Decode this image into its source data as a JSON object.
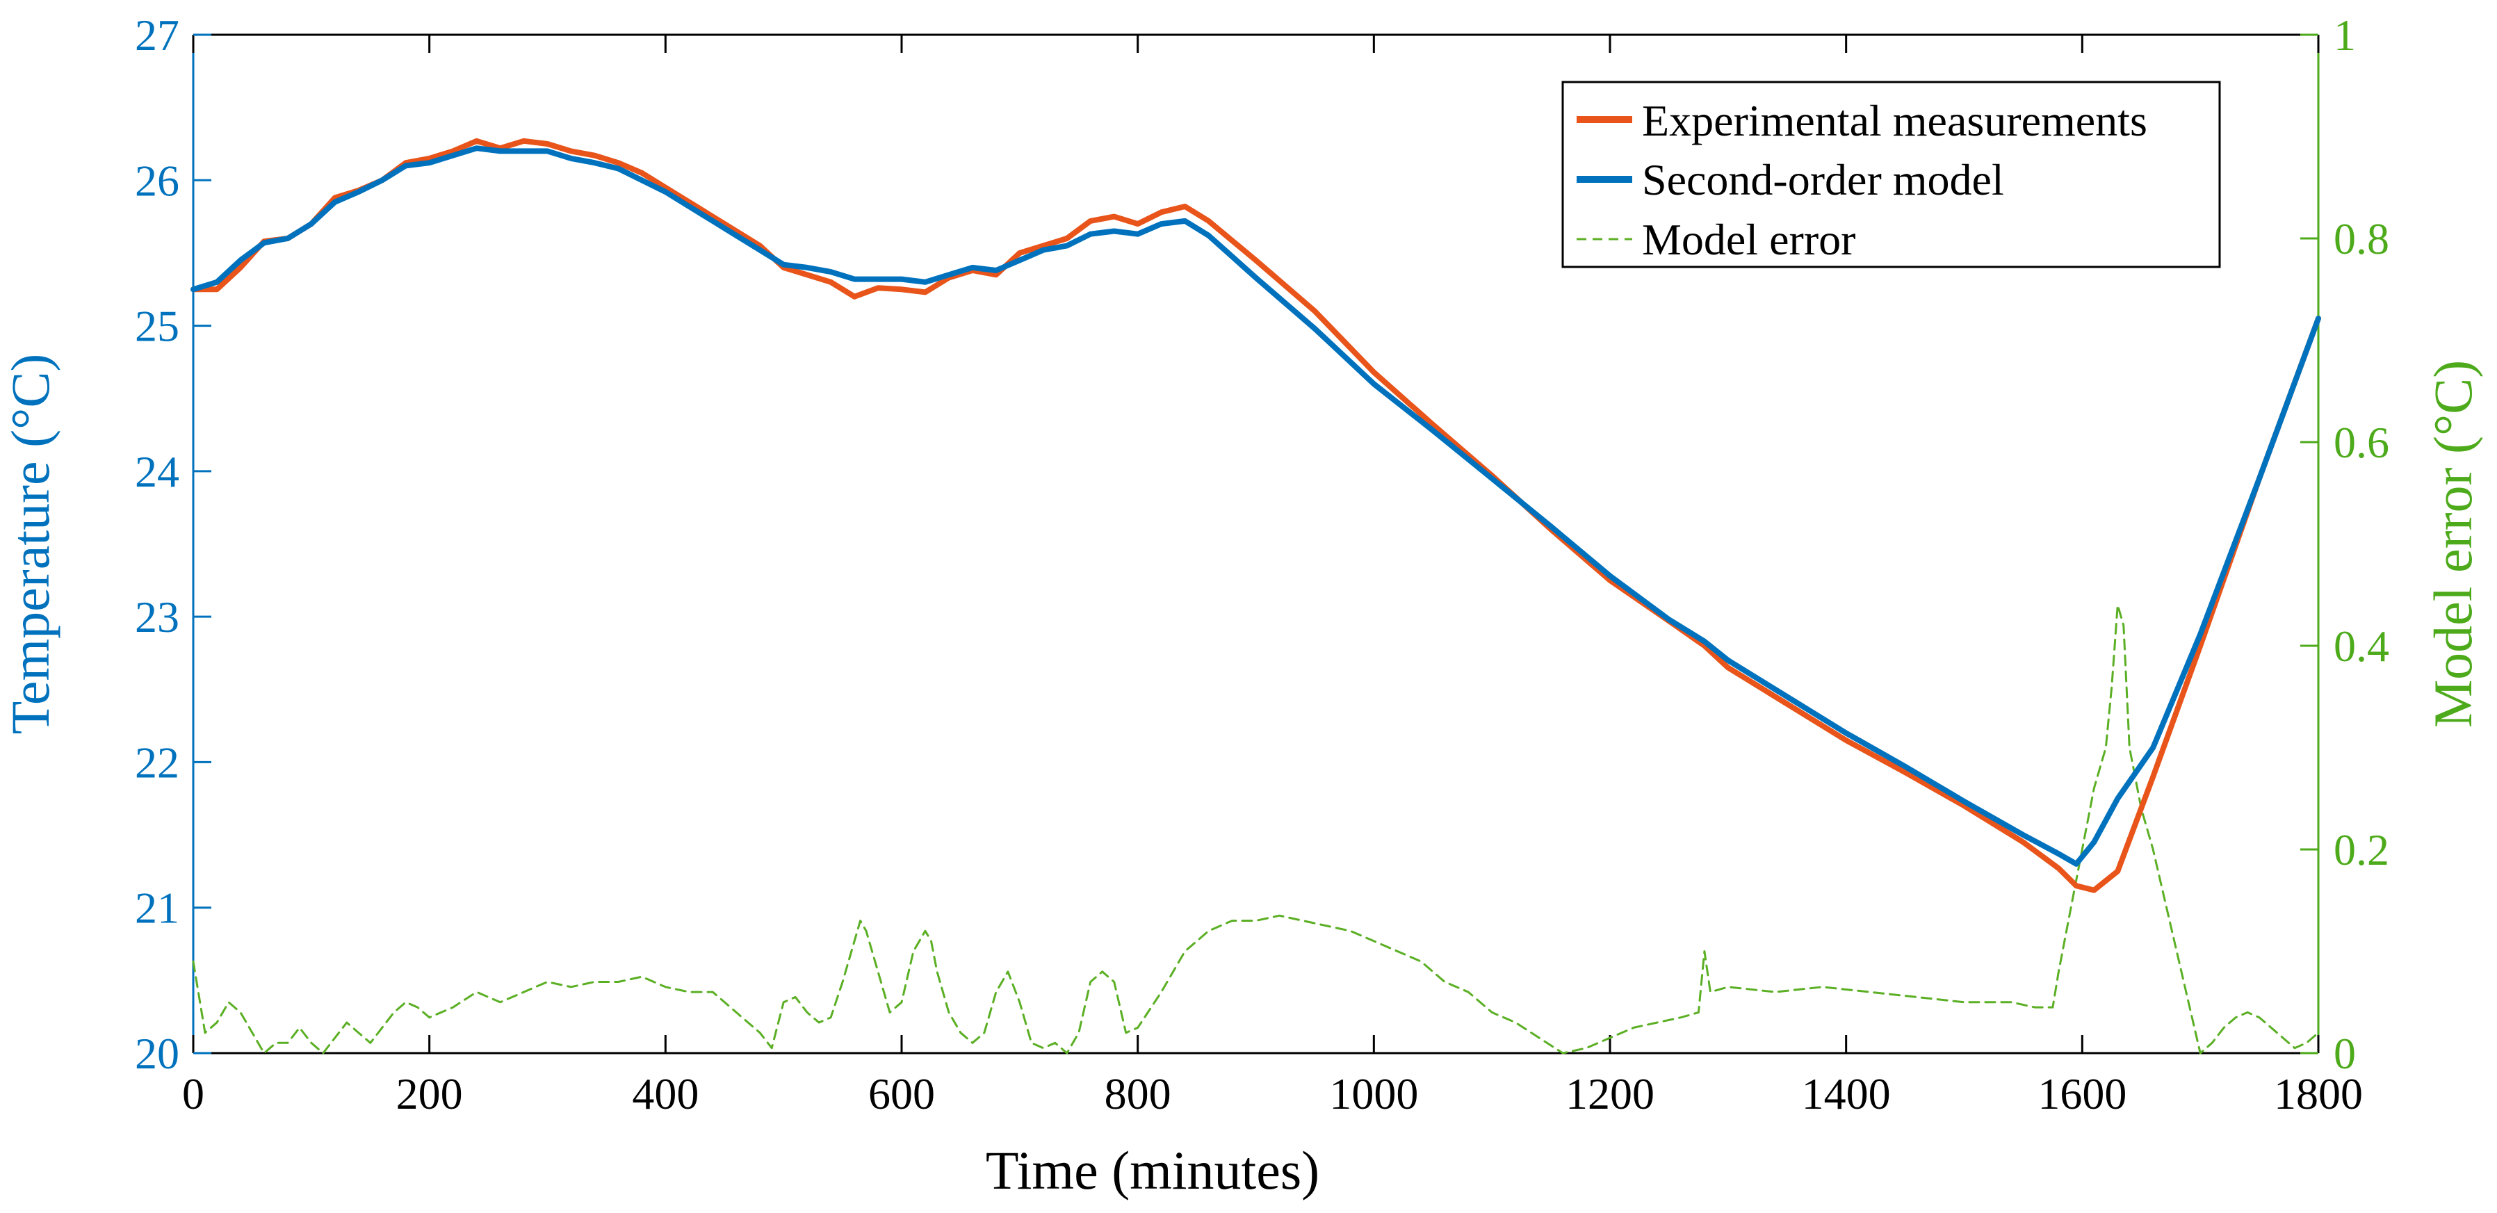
{
  "colors": {
    "left_axis": "#0072BD",
    "right_axis": "#4DAA1A",
    "experimental": "#E8541A",
    "model": "#0072BD",
    "error": "#5BAF24",
    "frame": "#000000"
  },
  "chart_data": {
    "type": "line",
    "title": "",
    "xlabel": "Time (minutes)",
    "ylabel_left": "Temperature (°C)",
    "ylabel_right": "Model error (°C)",
    "xlim": [
      0,
      1800
    ],
    "ylim_left": [
      20,
      27
    ],
    "ylim_right": [
      0,
      1
    ],
    "x_ticks": [
      0,
      200,
      400,
      600,
      800,
      1000,
      1200,
      1400,
      1600,
      1800
    ],
    "y_left_ticks": [
      20,
      21,
      22,
      23,
      24,
      25,
      26,
      27
    ],
    "y_right_ticks": [
      "0",
      "0.2",
      "0.4",
      "0.6",
      "0.8",
      "1"
    ],
    "grid": false,
    "legend_position": "top-right",
    "series": [
      {
        "name": "Experimental measurements",
        "axis": "left",
        "style": "solid",
        "x": [
          0,
          20,
          40,
          60,
          80,
          100,
          120,
          140,
          160,
          180,
          200,
          220,
          240,
          260,
          280,
          300,
          320,
          340,
          360,
          380,
          400,
          420,
          440,
          460,
          480,
          500,
          520,
          540,
          560,
          580,
          600,
          620,
          640,
          660,
          680,
          700,
          720,
          740,
          760,
          780,
          800,
          820,
          840,
          860,
          900,
          950,
          1000,
          1050,
          1100,
          1150,
          1200,
          1250,
          1280,
          1300,
          1350,
          1400,
          1450,
          1500,
          1550,
          1580,
          1595,
          1610,
          1630,
          1660,
          1700,
          1750,
          1800
        ],
        "values": [
          25.25,
          25.25,
          25.4,
          25.58,
          25.6,
          25.7,
          25.88,
          25.93,
          26.0,
          26.12,
          26.15,
          26.2,
          26.27,
          26.22,
          26.27,
          26.25,
          26.2,
          26.17,
          26.12,
          26.05,
          25.95,
          25.85,
          25.75,
          25.65,
          25.55,
          25.4,
          25.35,
          25.3,
          25.2,
          25.26,
          25.25,
          25.23,
          25.33,
          25.38,
          25.35,
          25.5,
          25.55,
          25.6,
          25.72,
          25.75,
          25.7,
          25.78,
          25.82,
          25.72,
          25.45,
          25.1,
          24.68,
          24.32,
          23.97,
          23.6,
          23.25,
          22.97,
          22.8,
          22.65,
          22.4,
          22.15,
          21.93,
          21.7,
          21.45,
          21.27,
          21.15,
          21.12,
          21.25,
          21.9,
          22.8,
          23.95,
          25.05
        ]
      },
      {
        "name": "Second-order model",
        "axis": "left",
        "style": "solid",
        "x": [
          0,
          20,
          40,
          60,
          80,
          100,
          120,
          140,
          160,
          180,
          200,
          220,
          240,
          260,
          280,
          300,
          320,
          340,
          360,
          380,
          400,
          420,
          440,
          460,
          480,
          500,
          520,
          540,
          560,
          580,
          600,
          620,
          640,
          660,
          680,
          700,
          720,
          740,
          760,
          780,
          800,
          820,
          840,
          860,
          900,
          950,
          1000,
          1050,
          1100,
          1150,
          1200,
          1250,
          1280,
          1300,
          1350,
          1400,
          1450,
          1500,
          1550,
          1580,
          1595,
          1610,
          1630,
          1660,
          1700,
          1750,
          1800
        ],
        "values": [
          25.25,
          25.3,
          25.45,
          25.57,
          25.6,
          25.7,
          25.85,
          25.92,
          26.0,
          26.1,
          26.12,
          26.17,
          26.22,
          26.2,
          26.2,
          26.2,
          26.15,
          26.12,
          26.08,
          26.0,
          25.92,
          25.82,
          25.72,
          25.62,
          25.52,
          25.42,
          25.4,
          25.37,
          25.32,
          25.32,
          25.32,
          25.3,
          25.35,
          25.4,
          25.38,
          25.45,
          25.52,
          25.55,
          25.63,
          25.65,
          25.63,
          25.7,
          25.72,
          25.62,
          25.33,
          24.98,
          24.6,
          24.28,
          23.95,
          23.62,
          23.28,
          22.98,
          22.83,
          22.7,
          22.45,
          22.2,
          21.97,
          21.73,
          21.5,
          21.37,
          21.3,
          21.45,
          21.75,
          22.1,
          22.88,
          23.95,
          25.05
        ]
      },
      {
        "name": "Model error",
        "axis": "right",
        "style": "dashed",
        "x": [
          0,
          10,
          20,
          30,
          40,
          50,
          60,
          70,
          80,
          90,
          100,
          110,
          120,
          130,
          140,
          150,
          160,
          170,
          180,
          190,
          200,
          220,
          240,
          260,
          280,
          300,
          320,
          340,
          360,
          380,
          400,
          420,
          440,
          460,
          480,
          490,
          500,
          510,
          520,
          530,
          540,
          550,
          560,
          565,
          570,
          580,
          590,
          600,
          610,
          620,
          625,
          630,
          640,
          650,
          660,
          670,
          680,
          690,
          700,
          710,
          720,
          730,
          740,
          750,
          760,
          770,
          780,
          790,
          800,
          820,
          840,
          860,
          880,
          900,
          920,
          940,
          960,
          980,
          1000,
          1020,
          1040,
          1060,
          1080,
          1100,
          1120,
          1140,
          1160,
          1180,
          1200,
          1220,
          1240,
          1260,
          1275,
          1280,
          1285,
          1300,
          1340,
          1380,
          1420,
          1460,
          1500,
          1540,
          1560,
          1575,
          1580,
          1590,
          1600,
          1610,
          1620,
          1625,
          1630,
          1635,
          1640,
          1650,
          1660,
          1670,
          1680,
          1690,
          1700,
          1710,
          1720,
          1730,
          1740,
          1750,
          1760,
          1770,
          1780,
          1790,
          1800
        ],
        "values": [
          0.09,
          0.02,
          0.03,
          0.05,
          0.04,
          0.02,
          0.0,
          0.01,
          0.01,
          0.025,
          0.01,
          0.0,
          0.015,
          0.03,
          0.02,
          0.01,
          0.025,
          0.04,
          0.05,
          0.045,
          0.035,
          0.045,
          0.06,
          0.05,
          0.06,
          0.07,
          0.065,
          0.07,
          0.07,
          0.075,
          0.065,
          0.06,
          0.06,
          0.04,
          0.02,
          0.005,
          0.05,
          0.055,
          0.04,
          0.03,
          0.035,
          0.07,
          0.11,
          0.13,
          0.12,
          0.08,
          0.04,
          0.05,
          0.1,
          0.12,
          0.11,
          0.08,
          0.04,
          0.02,
          0.01,
          0.02,
          0.06,
          0.08,
          0.05,
          0.01,
          0.005,
          0.01,
          0.0,
          0.02,
          0.07,
          0.08,
          0.07,
          0.02,
          0.025,
          0.06,
          0.1,
          0.12,
          0.13,
          0.13,
          0.135,
          0.13,
          0.125,
          0.12,
          0.11,
          0.1,
          0.09,
          0.07,
          0.06,
          0.04,
          0.03,
          0.015,
          0.0,
          0.005,
          0.015,
          0.025,
          0.03,
          0.035,
          0.04,
          0.1,
          0.06,
          0.065,
          0.06,
          0.065,
          0.06,
          0.055,
          0.05,
          0.05,
          0.045,
          0.045,
          0.08,
          0.14,
          0.2,
          0.26,
          0.3,
          0.36,
          0.44,
          0.42,
          0.3,
          0.24,
          0.2,
          0.15,
          0.1,
          0.05,
          0.0,
          0.01,
          0.025,
          0.035,
          0.04,
          0.035,
          0.025,
          0.015,
          0.005,
          0.01,
          0.02
        ]
      }
    ]
  }
}
